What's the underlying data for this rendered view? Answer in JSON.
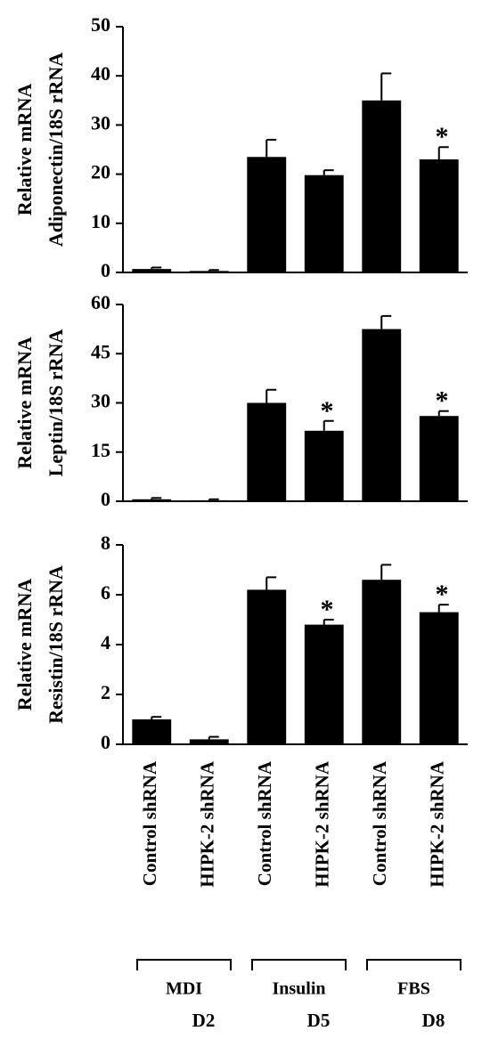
{
  "chart_data": [
    {
      "type": "bar",
      "ylabel": [
        "Relative mRNA",
        "Adiponectin/18S rRNA"
      ],
      "values": [
        0.7,
        0.3,
        23.5,
        19.8,
        35,
        23
      ],
      "errors": [
        0.3,
        0.2,
        3.5,
        1,
        5.5,
        2.5
      ],
      "markers": [
        null,
        null,
        null,
        null,
        null,
        "*"
      ],
      "color": "#000000",
      "ylim": [
        0,
        50
      ],
      "yticks": [
        0,
        10,
        20,
        30,
        40,
        50
      ]
    },
    {
      "type": "bar",
      "ylabel": [
        "Relative mRNA",
        "Leptin/18S rRNA"
      ],
      "values": [
        0.6,
        0.3,
        30,
        21.5,
        52.5,
        26
      ],
      "errors": [
        0.4,
        0.3,
        4,
        3,
        4,
        1.5
      ],
      "markers": [
        null,
        null,
        null,
        "*",
        null,
        "*"
      ],
      "color": "#000000",
      "ylim": [
        0,
        60
      ],
      "yticks": [
        0,
        15,
        30,
        45,
        60
      ]
    },
    {
      "type": "bar",
      "ylabel": [
        "Relative mRNA",
        "Resistin/18S rRNA"
      ],
      "values": [
        1,
        0.2,
        6.2,
        4.8,
        6.6,
        5.3
      ],
      "errors": [
        0.1,
        0.1,
        0.5,
        0.2,
        0.6,
        0.3
      ],
      "markers": [
        null,
        null,
        null,
        "*",
        null,
        "*"
      ],
      "color": "#000000",
      "ylim": [
        0,
        8
      ],
      "yticks": [
        0,
        2,
        4,
        6,
        8
      ],
      "categories": [
        "Control shRNA",
        "HIPK-2 shRNA",
        "Control shRNA",
        "HIPK-2 shRNA",
        "Control shRNA",
        "HIPK-2 shRNA"
      ],
      "groups": [
        {
          "label": "MDI",
          "day": "D2"
        },
        {
          "label": "Insulin",
          "day": "D5"
        },
        {
          "label": "FBS",
          "day": "D8"
        }
      ]
    }
  ]
}
